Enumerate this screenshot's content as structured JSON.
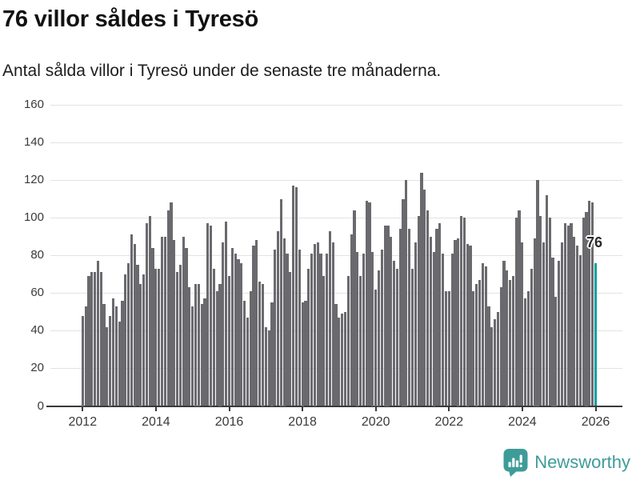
{
  "header": {
    "title": "76 villor såldes i Tyresö",
    "subtitle": "Antal sålda villor i Tyresö under de senaste tre månaderna."
  },
  "annotation": {
    "text": "76"
  },
  "footer": {
    "brand": "Newsworthy",
    "brand_color": "#3e9c98",
    "logo_icon": "bar-chart-speech-bubble-icon"
  },
  "colors": {
    "bar": "#6a6a6e",
    "highlight": "#00a1a2",
    "grid": "#e3e3e3",
    "axis": "#3a3a3a",
    "tick_text": "#3a3a3a"
  },
  "chart_data": {
    "type": "bar",
    "title": "76 villor såldes i Tyresö",
    "subtitle": "Antal sålda villor i Tyresö under de senaste tre månaderna.",
    "unit": "sålda villor per månad",
    "frequency": "monthly",
    "start_month": "2012-01",
    "end_month": "2026-01",
    "grid": true,
    "ylim": [
      0,
      160
    ],
    "y_ticks": [
      0,
      20,
      40,
      60,
      80,
      100,
      120,
      140,
      160
    ],
    "x_tick_years": [
      2012,
      2014,
      2016,
      2018,
      2020,
      2022,
      2024,
      2026
    ],
    "highlight": {
      "index": 168,
      "month": "2026-01",
      "value": 76,
      "label": "76"
    },
    "values": [
      48,
      53,
      69,
      71,
      71,
      77,
      71,
      54,
      42,
      48,
      57,
      53,
      45,
      56,
      70,
      76,
      91,
      86,
      75,
      65,
      70,
      97,
      101,
      84,
      73,
      73,
      90,
      90,
      104,
      108,
      88,
      71,
      75,
      90,
      84,
      63,
      53,
      65,
      65,
      54,
      57,
      97,
      96,
      73,
      61,
      65,
      87,
      98,
      69,
      84,
      81,
      78,
      76,
      56,
      47,
      61,
      85,
      88,
      66,
      65,
      42,
      40,
      55,
      83,
      93,
      110,
      89,
      81,
      71,
      117,
      116,
      83,
      55,
      56,
      73,
      81,
      86,
      87,
      81,
      69,
      81,
      93,
      87,
      54,
      47,
      49,
      50,
      69,
      91,
      104,
      82,
      69,
      81,
      109,
      108,
      82,
      62,
      72,
      83,
      96,
      96,
      90,
      77,
      73,
      94,
      110,
      120,
      94,
      73,
      87,
      101,
      124,
      115,
      104,
      90,
      82,
      94,
      97,
      81,
      61,
      61,
      81,
      88,
      89,
      101,
      100,
      86,
      85,
      61,
      65,
      67,
      76,
      74,
      53,
      42,
      46,
      50,
      63,
      77,
      72,
      67,
      69,
      100,
      104,
      87,
      57,
      61,
      73,
      89,
      120,
      101,
      87,
      112,
      100,
      79,
      58,
      77,
      87,
      97,
      96,
      97,
      90,
      85,
      80,
      100,
      103,
      109,
      108,
      76
    ]
  }
}
